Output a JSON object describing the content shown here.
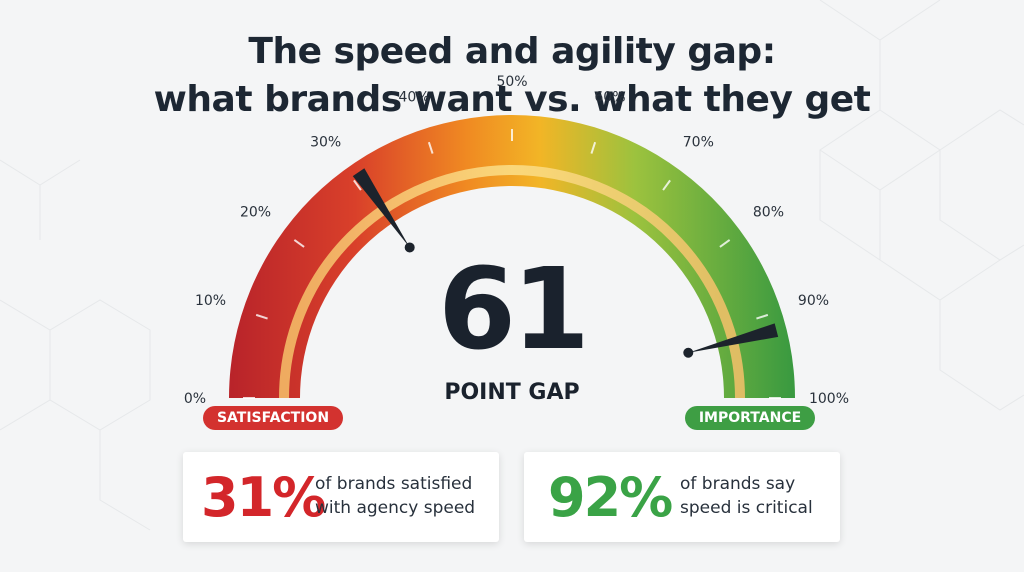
{
  "title": {
    "line1": "The speed and agility gap:",
    "line2": "what brands want vs. what they get"
  },
  "chart_data": {
    "type": "gauge",
    "min": 0,
    "max": 100,
    "tick_labels": [
      "0%",
      "10%",
      "20%",
      "30%",
      "40%",
      "50%",
      "60%",
      "70%",
      "80%",
      "90%",
      "100%"
    ],
    "tick_values": [
      0,
      10,
      20,
      30,
      40,
      50,
      60,
      70,
      80,
      90,
      100
    ],
    "color_scale": [
      "#c62a28",
      "#e5502a",
      "#f0a020",
      "#6db63d",
      "#3a9a40"
    ],
    "needles": [
      {
        "label": "SATISFACTION",
        "value": 31,
        "color": "#d3322f"
      },
      {
        "label": "IMPORTANCE",
        "value": 92,
        "color": "#3e9e44"
      }
    ],
    "gap_value": "61",
    "gap_label": "POINT GAP"
  },
  "stats": [
    {
      "value": "31%",
      "line1": "of brands satisfied",
      "line2": "with agency speed",
      "color": "#d3262a"
    },
    {
      "value": "92%",
      "line1": "of brands say",
      "line2": "speed is critical",
      "color": "#3aa346"
    }
  ]
}
